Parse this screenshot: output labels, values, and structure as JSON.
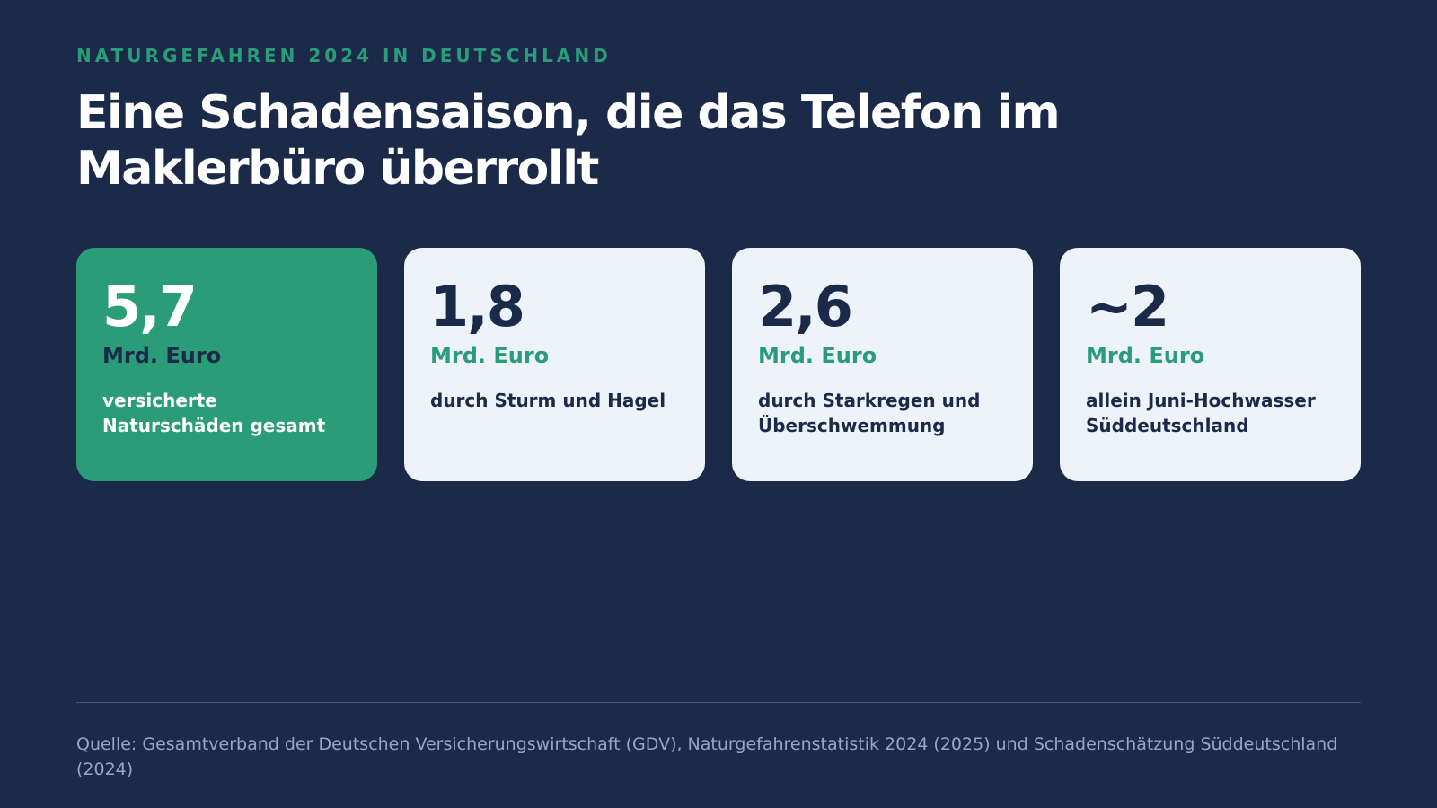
{
  "header": {
    "eyebrow": "NATURGEFAHREN 2024 IN DEUTSCHLAND",
    "title": "Eine Schadensaison, die das Telefon im Maklerbüro überrollt"
  },
  "cards": [
    {
      "value": "5,7",
      "unit": "Mrd. Euro",
      "desc": "versicherte Naturschäden gesamt",
      "highlight": true
    },
    {
      "value": "1,8",
      "unit": "Mrd. Euro",
      "desc": "durch Sturm und Hagel",
      "highlight": false
    },
    {
      "value": "2,6",
      "unit": "Mrd. Euro",
      "desc": "durch Starkregen und Überschwemmung",
      "highlight": false
    },
    {
      "value": "~2",
      "unit": "Mrd. Euro",
      "desc": "allein Juni-Hochwasser Süddeutschland",
      "highlight": false
    }
  ],
  "footer": {
    "source": "Quelle: Gesamtverband der Deutschen Versicherungswirtschaft (GDV), Naturgefahrenstatistik 2024 (2025) und Schadenschätzung Süddeutschland (2024)"
  },
  "colors": {
    "background": "#1c2a4a",
    "accent": "#2a9d78",
    "card": "#eef3f9",
    "text_dark": "#1c2a4a",
    "muted": "#9aa6bf"
  }
}
